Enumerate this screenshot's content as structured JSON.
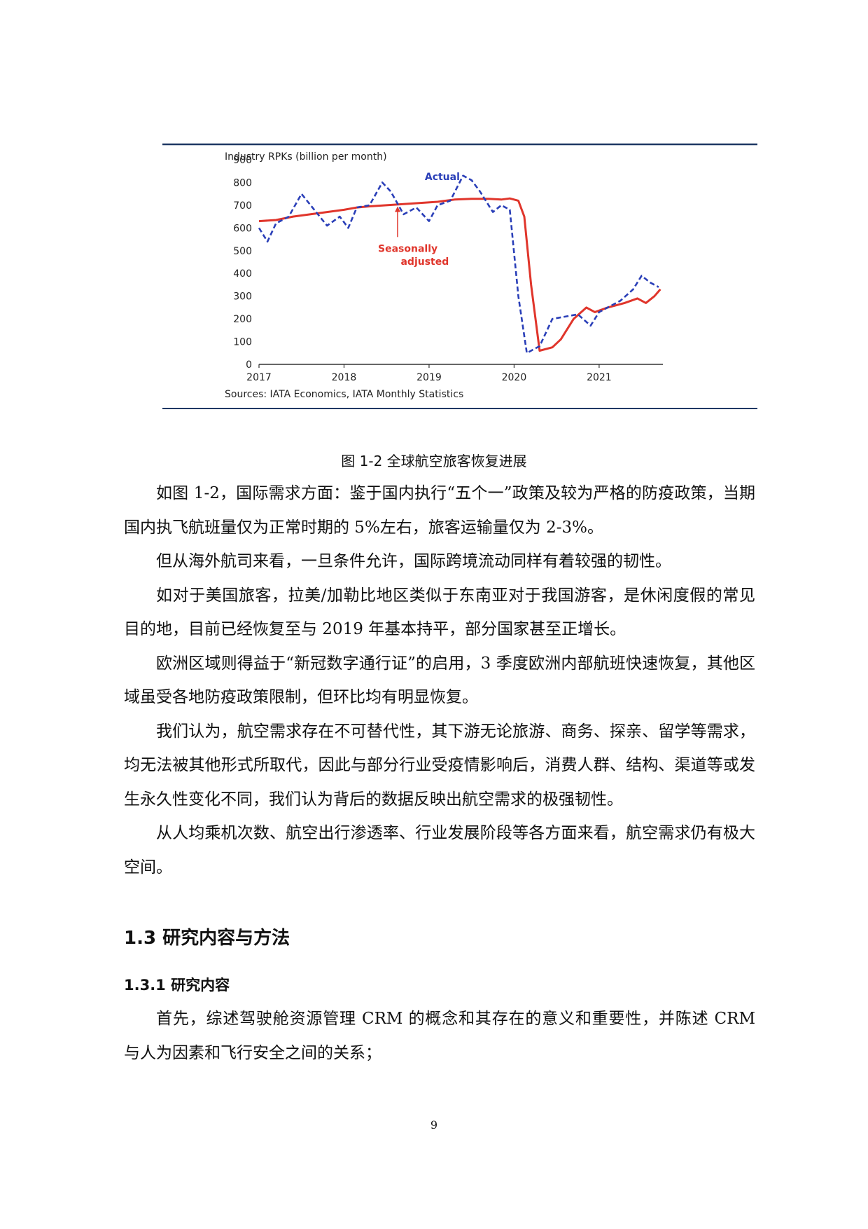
{
  "figure": {
    "chart_data": {
      "type": "line",
      "title": "Industry RPKs (billion per month)",
      "source_note": "Sources: IATA Economics, IATA Monthly Statistics",
      "xlim": [
        2017,
        2021.8
      ],
      "ylim": [
        0,
        900
      ],
      "x_ticks": [
        "2017",
        "2018",
        "2019",
        "2020",
        "2021"
      ],
      "y_ticks": [
        "900",
        "800",
        "700",
        "600",
        "500",
        "400",
        "300",
        "200",
        "100",
        "0"
      ],
      "colors": {
        "actual": "#2a3fb8",
        "seasonally_adjusted": "#e0352b",
        "rule": "#1f3864"
      },
      "series": [
        {
          "name": "Actual",
          "style": "dashed",
          "x": [
            2017.0,
            2017.1,
            2017.2,
            2017.35,
            2017.5,
            2017.65,
            2017.8,
            2017.95,
            2018.05,
            2018.15,
            2018.3,
            2018.45,
            2018.55,
            2018.7,
            2018.85,
            2019.0,
            2019.1,
            2019.25,
            2019.4,
            2019.5,
            2019.6,
            2019.75,
            2019.85,
            2019.95,
            2020.05,
            2020.15,
            2020.3,
            2020.45,
            2020.6,
            2020.75,
            2020.9,
            2021.0,
            2021.1,
            2021.25,
            2021.4,
            2021.5,
            2021.6,
            2021.7
          ],
          "y": [
            600,
            540,
            620,
            650,
            750,
            680,
            610,
            650,
            600,
            690,
            700,
            800,
            760,
            660,
            690,
            630,
            700,
            720,
            830,
            810,
            760,
            670,
            700,
            680,
            300,
            50,
            80,
            200,
            210,
            220,
            170,
            230,
            250,
            280,
            330,
            390,
            360,
            340
          ]
        },
        {
          "name": "Seasonally adjusted",
          "style": "solid",
          "x": [
            2017.0,
            2017.2,
            2017.4,
            2017.6,
            2017.8,
            2018.0,
            2018.15,
            2018.3,
            2018.5,
            2018.7,
            2018.9,
            2019.1,
            2019.3,
            2019.5,
            2019.7,
            2019.85,
            2019.95,
            2020.05,
            2020.12,
            2020.2,
            2020.3,
            2020.45,
            2020.55,
            2020.7,
            2020.85,
            2020.95,
            2021.1,
            2021.3,
            2021.45,
            2021.55,
            2021.65,
            2021.72
          ],
          "y": [
            630,
            635,
            650,
            660,
            670,
            680,
            690,
            695,
            700,
            705,
            710,
            715,
            725,
            728,
            728,
            725,
            730,
            720,
            650,
            350,
            60,
            75,
            110,
            200,
            250,
            230,
            250,
            270,
            290,
            270,
            300,
            330
          ]
        }
      ],
      "annotations": {
        "actual": "Actual",
        "sa_line1": "Seasonally",
        "sa_line2": "adjusted"
      }
    },
    "caption": "图 1-2 全球航空旅客恢复进展"
  },
  "paragraphs": [
    "如图 1-2，国际需求方面：鉴于国内执行“五个一”政策及较为严格的防疫政策，当期国内执飞航班量仅为正常时期的 5%左右，旅客运输量仅为 2-3%。",
    "但从海外航司来看，一旦条件允许，国际跨境流动同样有着较强的韧性。",
    "如对于美国旅客，拉美/加勒比地区类似于东南亚对于我国游客，是休闲度假的常见目的地，目前已经恢复至与 2019 年基本持平，部分国家甚至正增长。",
    "欧洲区域则得益于“新冠数字通行证”的启用，3 季度欧洲内部航班快速恢复，其他区域虽受各地防疫政策限制，但环比均有明显恢复。",
    "我们认为，航空需求存在不可替代性，其下游无论旅游、商务、探亲、留学等需求，均无法被其他形式所取代，因此与部分行业受疫情影响后，消费人群、结构、渠道等或发生永久性变化不同，我们认为背后的数据反映出航空需求的极强韧性。",
    "从人均乘机次数、航空出行渗透率、行业发展阶段等各方面来看，航空需求仍有极大空间。"
  ],
  "section_heading": "1.3 研究内容与方法",
  "subsection_heading": "1.3.1 研究内容",
  "section_paragraphs": [
    "首先，综述驾驶舱资源管理 CRM 的概念和其存在的意义和重要性，并陈述 CRM 与人为因素和飞行安全之间的关系；"
  ],
  "page_number": "9"
}
